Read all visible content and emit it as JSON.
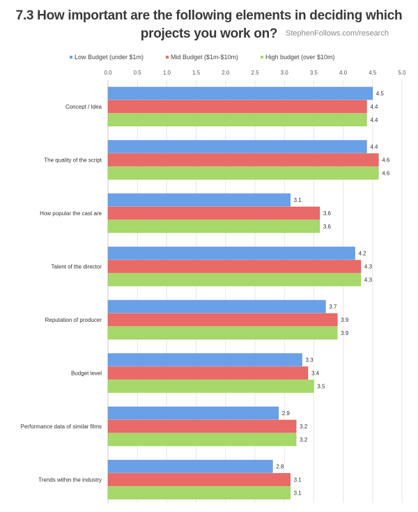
{
  "chart_data": {
    "type": "bar",
    "orientation": "horizontal",
    "title_line1": "7.3 How important are the following elements in deciding which",
    "title_line2": "projects you work on?",
    "source": "StephenFollows.com/research",
    "xlim": [
      0,
      5
    ],
    "ticks": [
      "0.0",
      "0.5",
      "1.0",
      "1.5",
      "2.0",
      "2.5",
      "3.0",
      "3.5",
      "4.0",
      "4.5",
      "5.0"
    ],
    "categories": [
      "Concept / Idea",
      "The quality of the script",
      "How popular the cast are",
      "Talent of the director",
      "Reputation of producer",
      "Budget level",
      "Performance data of similar films",
      "Trends within the industry"
    ],
    "series": [
      {
        "name": "Low Budget (under $1m)",
        "color": "#6aa0e8",
        "values": [
          4.5,
          4.4,
          3.1,
          4.2,
          3.7,
          3.3,
          2.9,
          2.8
        ]
      },
      {
        "name": "Mid Budget ($1m-$10m)",
        "color": "#e96a66",
        "values": [
          4.4,
          4.6,
          3.6,
          4.3,
          3.9,
          3.4,
          3.2,
          3.1
        ]
      },
      {
        "name": "High budget (over $10m)",
        "color": "#a6d86a",
        "values": [
          4.4,
          4.6,
          3.6,
          4.3,
          3.9,
          3.5,
          3.2,
          3.1
        ]
      }
    ],
    "grid": true,
    "legend_position": "top"
  }
}
